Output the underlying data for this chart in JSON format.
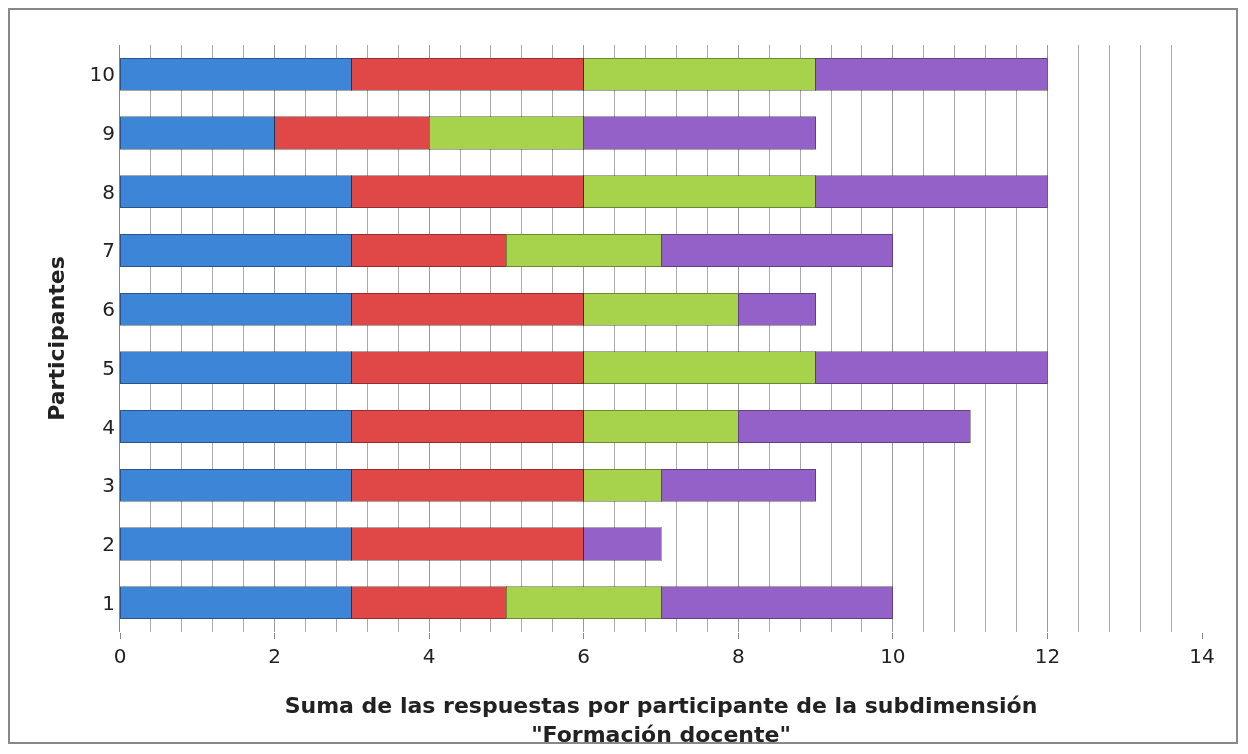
{
  "chart_data": {
    "type": "bar",
    "orientation": "horizontal",
    "stacked": true,
    "categories": [
      "10",
      "9",
      "8",
      "7",
      "6",
      "5",
      "4",
      "3",
      "2",
      "1"
    ],
    "series": [
      {
        "color": "#3d85d6",
        "values": [
          3,
          2,
          3,
          3,
          3,
          3,
          3,
          3,
          3,
          3
        ]
      },
      {
        "color": "#e04848",
        "values": [
          3,
          2,
          3,
          2,
          3,
          3,
          3,
          3,
          3,
          2
        ]
      },
      {
        "color": "#a6d24c",
        "values": [
          3,
          2,
          3,
          2,
          2,
          3,
          2,
          1,
          0,
          2
        ]
      },
      {
        "color": "#9461c9",
        "values": [
          3,
          3,
          3,
          3,
          1,
          3,
          3,
          2,
          1,
          3
        ]
      }
    ],
    "xlim": [
      0,
      14
    ],
    "xticks": [
      0,
      2,
      4,
      6,
      8,
      10,
      12,
      14
    ],
    "grid": "x",
    "xlabel": "Suma de las respuestas por participante de la subdimensión\n\"Formación docente\"",
    "ylabel": "Participantes"
  }
}
